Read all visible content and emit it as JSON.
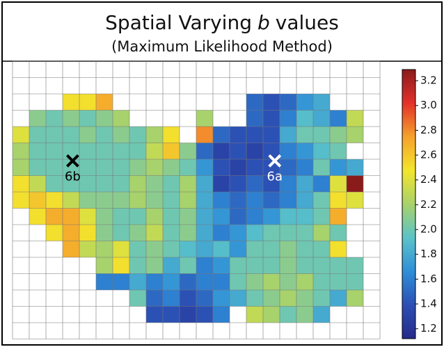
{
  "chart_data": {
    "type": "heatmap",
    "title": [
      "Spatial Varying",
      "b",
      "values"
    ],
    "subtitle": "(Maximum Likelihood Method)",
    "columns": 22,
    "z": [
      [
        null,
        null,
        null,
        null,
        null,
        null,
        null,
        null,
        null,
        null,
        null,
        null,
        null,
        null,
        null,
        null,
        null,
        null,
        null,
        null,
        null,
        null
      ],
      [
        null,
        null,
        null,
        null,
        null,
        null,
        null,
        null,
        null,
        null,
        null,
        null,
        null,
        null,
        null,
        null,
        null,
        null,
        null,
        null,
        null,
        null
      ],
      [
        null,
        null,
        null,
        2.5,
        2.5,
        2.7,
        null,
        null,
        null,
        null,
        null,
        null,
        null,
        null,
        1.5,
        1.4,
        1.5,
        1.7,
        1.8,
        null,
        null,
        null
      ],
      [
        null,
        2.1,
        2.0,
        2.1,
        2.0,
        2.1,
        2.2,
        null,
        null,
        null,
        null,
        2.2,
        null,
        null,
        1.5,
        1.4,
        1.6,
        1.9,
        1.8,
        1.6,
        2.3,
        null
      ],
      [
        2.4,
        2.0,
        2.0,
        2.0,
        2.1,
        2.0,
        2.1,
        2.0,
        2.2,
        2.5,
        null,
        2.8,
        1.5,
        1.4,
        1.4,
        1.4,
        1.8,
        2.0,
        2.0,
        2.1,
        2.2,
        null
      ],
      [
        2.2,
        2.0,
        2.0,
        2.0,
        2.0,
        2.0,
        2.0,
        2.0,
        2.3,
        2.6,
        2.1,
        1.5,
        1.3,
        1.4,
        1.3,
        1.4,
        1.6,
        1.7,
        1.9,
        2.0,
        null,
        null
      ],
      [
        2.2,
        2.0,
        2.0,
        2.0,
        2.0,
        2.0,
        2.0,
        2.1,
        2.2,
        2.1,
        2.0,
        1.7,
        1.4,
        1.3,
        1.4,
        1.4,
        1.5,
        1.6,
        2.0,
        1.7,
        1.8,
        null
      ],
      [
        2.5,
        2.3,
        2.0,
        2.0,
        2.0,
        2.0,
        2.0,
        2.2,
        2.1,
        2.0,
        2.2,
        1.8,
        1.3,
        1.4,
        1.5,
        1.4,
        1.6,
        1.8,
        1.6,
        2.4,
        3.3,
        null
      ],
      [
        2.5,
        2.6,
        2.5,
        2.3,
        2.1,
        2.1,
        2.1,
        2.2,
        2.1,
        2.0,
        2.2,
        1.8,
        1.6,
        1.5,
        1.6,
        1.5,
        1.6,
        1.8,
        2.0,
        2.5,
        2.4,
        null
      ],
      [
        null,
        2.5,
        2.7,
        2.7,
        2.4,
        2.1,
        2.0,
        2.0,
        2.2,
        2.0,
        2.1,
        1.8,
        1.7,
        1.5,
        1.6,
        1.7,
        1.9,
        1.9,
        2.0,
        2.7,
        null,
        null
      ],
      [
        null,
        null,
        2.5,
        2.7,
        2.5,
        2.1,
        2.0,
        2.1,
        2.3,
        2.0,
        2.1,
        1.8,
        1.6,
        1.7,
        1.9,
        2.0,
        2.0,
        2.0,
        2.2,
        2.0,
        null,
        null
      ],
      [
        null,
        null,
        null,
        2.7,
        2.3,
        2.2,
        2.4,
        2.0,
        2.1,
        2.0,
        1.9,
        1.8,
        1.9,
        1.7,
        2.0,
        2.0,
        2.1,
        2.0,
        2.0,
        2.5,
        null,
        null
      ],
      [
        null,
        null,
        null,
        null,
        null,
        2.2,
        2.5,
        2.0,
        2.1,
        1.8,
        2.0,
        1.6,
        1.7,
        2.0,
        2.0,
        2.0,
        2.1,
        2.0,
        2.0,
        2.0,
        2.0,
        null
      ],
      [
        null,
        null,
        null,
        null,
        null,
        1.6,
        1.6,
        1.8,
        1.6,
        1.7,
        1.5,
        1.6,
        1.6,
        2.0,
        2.1,
        2.2,
        2.1,
        2.2,
        2.0,
        2.0,
        2.0,
        null
      ],
      [
        null,
        null,
        null,
        null,
        null,
        null,
        null,
        2.0,
        1.5,
        1.6,
        1.4,
        1.5,
        1.7,
        1.8,
        2.0,
        2.1,
        2.2,
        2.1,
        2.0,
        1.8,
        2.2,
        null
      ],
      [
        null,
        null,
        null,
        null,
        null,
        null,
        null,
        null,
        1.4,
        1.4,
        1.3,
        1.4,
        1.6,
        null,
        2.3,
        2.2,
        2.0,
        2.1,
        1.8,
        null,
        null,
        null
      ],
      [
        null,
        null,
        null,
        null,
        null,
        null,
        null,
        null,
        null,
        null,
        null,
        null,
        null,
        null,
        null,
        null,
        null,
        null,
        null,
        null,
        null,
        null
      ]
    ],
    "zlim": [
      1.12,
      3.29
    ],
    "zticks": [
      1.2,
      1.4,
      1.6,
      1.8,
      {
        "value": 2,
        "label": "2.0"
      },
      2.2,
      2.4,
      2.6,
      2.8,
      {
        "value": 3,
        "label": "3.0"
      },
      3.2
    ],
    "colormap": [
      "#262a8a",
      "#2c4fb4",
      "#2f8fd8",
      "#5cc3c8",
      "#a8d26a",
      "#f3e52d",
      "#f6a12c",
      "#e3322a",
      "#8a1b1b"
    ],
    "markers": [
      {
        "label": "6b",
        "x": 3.6,
        "y": 6.1,
        "color": "#000000"
      },
      {
        "label": "6a",
        "x": 15.7,
        "y": 6.1,
        "color": "#ffffff"
      }
    ]
  }
}
